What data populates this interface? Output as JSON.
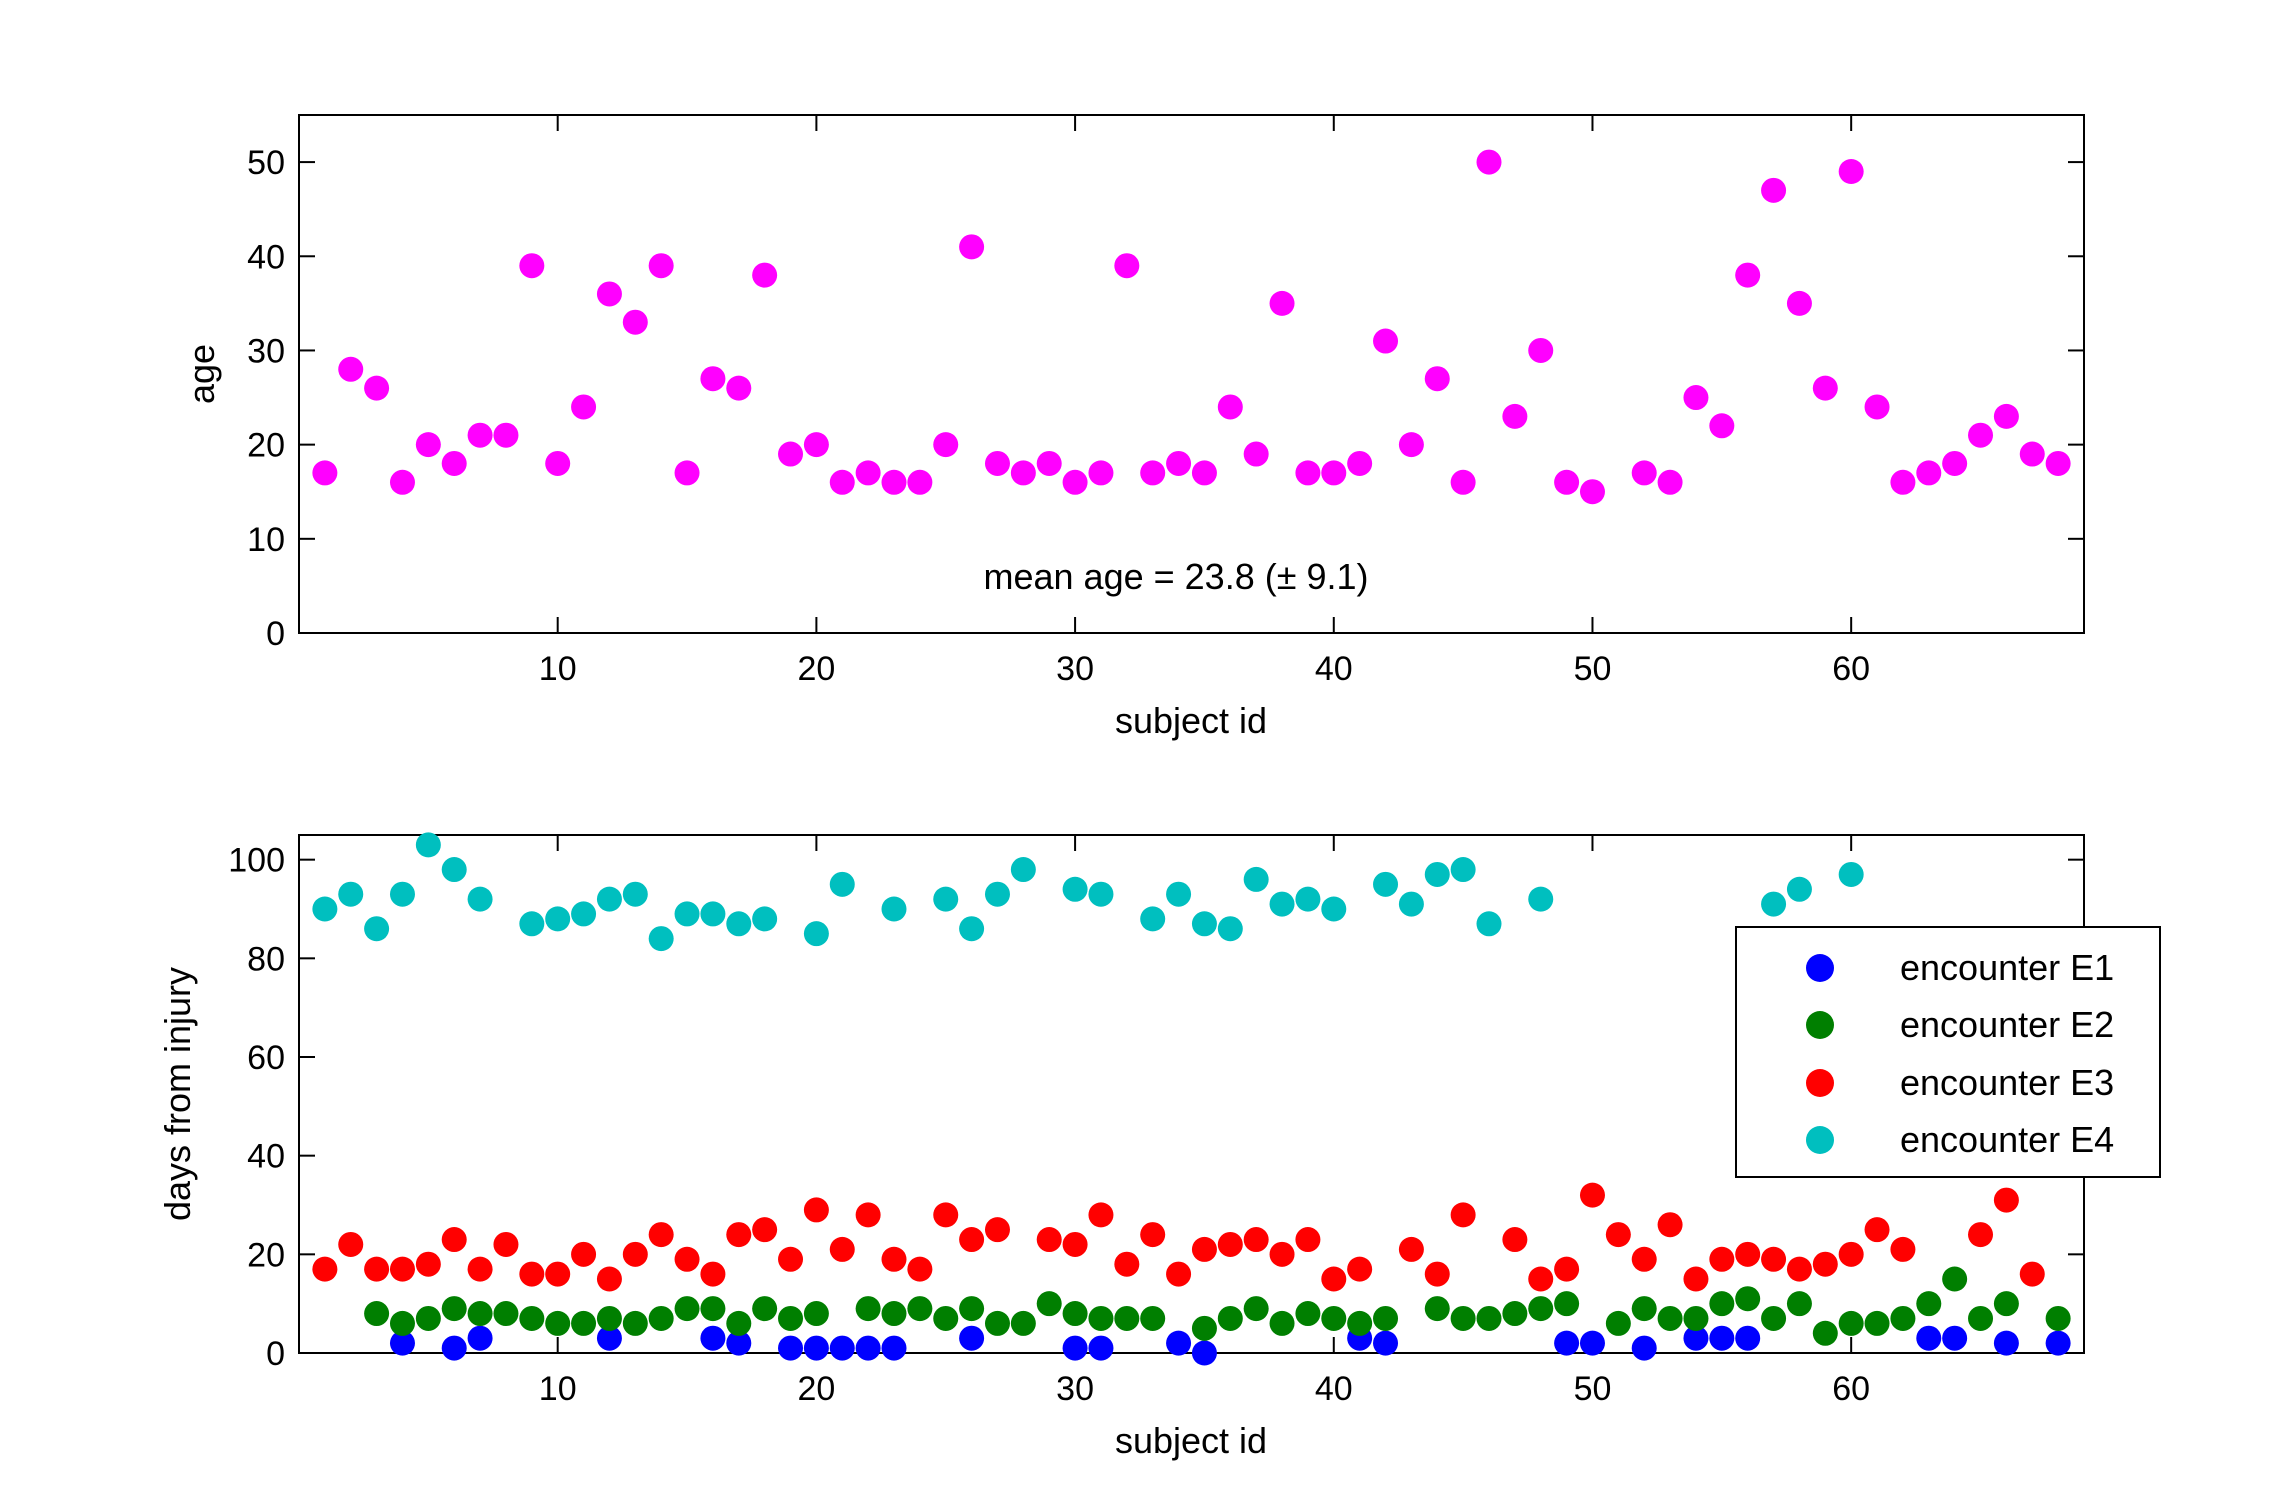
{
  "chart_data": [
    {
      "type": "scatter",
      "xlabel": "subject id",
      "ylabel": "age",
      "xlim": [
        0,
        69
      ],
      "ylim": [
        0,
        55
      ],
      "xticks": [
        10,
        20,
        30,
        40,
        50,
        60
      ],
      "yticks": [
        0,
        10,
        20,
        30,
        40,
        50
      ],
      "annotation": "mean age = 23.8 (± 9.1)",
      "series": [
        {
          "name": "age",
          "color": "#ff00ff",
          "x": [
            1,
            2,
            3,
            4,
            5,
            6,
            7,
            8,
            9,
            10,
            11,
            12,
            13,
            14,
            15,
            16,
            17,
            18,
            19,
            20,
            21,
            22,
            23,
            24,
            25,
            26,
            27,
            28,
            29,
            30,
            31,
            32,
            33,
            34,
            35,
            36,
            37,
            38,
            39,
            40,
            41,
            42,
            43,
            44,
            45,
            46,
            47,
            48,
            49,
            50,
            52,
            53,
            54,
            55,
            56,
            57,
            58,
            59,
            60,
            61,
            62,
            63,
            64,
            65,
            66,
            67,
            68
          ],
          "y": [
            17,
            28,
            26,
            16,
            20,
            18,
            21,
            21,
            39,
            18,
            24,
            36,
            33,
            39,
            17,
            27,
            26,
            38,
            19,
            20,
            16,
            17,
            16,
            16,
            20,
            41,
            18,
            17,
            18,
            16,
            17,
            39,
            17,
            18,
            17,
            24,
            19,
            35,
            17,
            17,
            18,
            31,
            20,
            27,
            16,
            50,
            23,
            30,
            16,
            15,
            17,
            16,
            25,
            22,
            38,
            47,
            35,
            26,
            49,
            24,
            16,
            17,
            18,
            21,
            23,
            19,
            18
          ]
        }
      ]
    },
    {
      "type": "scatter",
      "xlabel": "subject id",
      "ylabel": "days from injury",
      "xlim": [
        0,
        69
      ],
      "ylim": [
        0,
        105
      ],
      "xticks": [
        10,
        20,
        30,
        40,
        50,
        60
      ],
      "yticks": [
        0,
        20,
        40,
        60,
        80,
        100
      ],
      "legend_position": "right",
      "series": [
        {
          "name": "encounter E1",
          "color": "#0000ff",
          "x": [
            4,
            6,
            7,
            12,
            16,
            17,
            19,
            20,
            21,
            22,
            23,
            26,
            30,
            31,
            34,
            35,
            41,
            42,
            49,
            50,
            52,
            54,
            55,
            56,
            63,
            64,
            66,
            68
          ],
          "y": [
            2,
            1,
            3,
            3,
            3,
            2,
            1,
            1,
            1,
            1,
            1,
            3,
            1,
            1,
            2,
            0,
            3,
            2,
            2,
            2,
            1,
            3,
            3,
            3,
            3,
            3,
            2,
            2
          ]
        },
        {
          "name": "encounter E2",
          "color": "#007f00",
          "x": [
            3,
            4,
            5,
            6,
            7,
            8,
            9,
            10,
            11,
            12,
            13,
            14,
            15,
            16,
            17,
            18,
            19,
            20,
            22,
            23,
            24,
            25,
            26,
            27,
            28,
            29,
            30,
            31,
            32,
            33,
            35,
            36,
            37,
            38,
            39,
            40,
            41,
            42,
            44,
            45,
            46,
            47,
            48,
            49,
            51,
            52,
            53,
            54,
            55,
            56,
            57,
            58,
            59,
            60,
            61,
            62,
            63,
            64,
            65,
            66,
            68
          ],
          "y": [
            8,
            6,
            7,
            9,
            8,
            8,
            7,
            6,
            6,
            7,
            6,
            7,
            9,
            9,
            6,
            9,
            7,
            8,
            9,
            8,
            9,
            7,
            9,
            6,
            6,
            10,
            8,
            7,
            7,
            7,
            5,
            7,
            9,
            6,
            8,
            7,
            6,
            7,
            9,
            7,
            7,
            8,
            9,
            10,
            6,
            9,
            7,
            7,
            10,
            11,
            7,
            10,
            4,
            6,
            6,
            7,
            10,
            15,
            7,
            10,
            7
          ]
        },
        {
          "name": "encounter E3",
          "color": "#ff0000",
          "x": [
            1,
            2,
            3,
            4,
            5,
            6,
            7,
            8,
            9,
            10,
            11,
            12,
            13,
            14,
            15,
            16,
            17,
            18,
            19,
            20,
            21,
            22,
            23,
            24,
            25,
            26,
            27,
            29,
            30,
            31,
            32,
            33,
            34,
            35,
            36,
            37,
            38,
            39,
            40,
            41,
            43,
            44,
            45,
            47,
            48,
            49,
            50,
            51,
            52,
            53,
            54,
            55,
            56,
            57,
            58,
            59,
            60,
            61,
            62,
            65,
            66,
            67
          ],
          "y": [
            17,
            22,
            17,
            17,
            18,
            23,
            17,
            22,
            16,
            16,
            20,
            15,
            20,
            24,
            19,
            16,
            24,
            25,
            19,
            29,
            21,
            28,
            19,
            17,
            28,
            23,
            25,
            23,
            22,
            28,
            18,
            24,
            16,
            21,
            22,
            23,
            20,
            23,
            15,
            17,
            21,
            16,
            28,
            23,
            15,
            17,
            32,
            24,
            19,
            26,
            15,
            19,
            20,
            19,
            17,
            18,
            20,
            25,
            21,
            24,
            31,
            16
          ]
        },
        {
          "name": "encounter E4",
          "color": "#00bfbf",
          "x": [
            1,
            2,
            3,
            4,
            5,
            6,
            7,
            9,
            10,
            11,
            12,
            13,
            14,
            15,
            16,
            17,
            18,
            20,
            21,
            23,
            25,
            26,
            27,
            28,
            30,
            31,
            33,
            34,
            35,
            36,
            37,
            38,
            39,
            40,
            42,
            43,
            44,
            45,
            46,
            48,
            57,
            58,
            60
          ],
          "y": [
            90,
            93,
            86,
            93,
            103,
            98,
            92,
            87,
            88,
            89,
            92,
            93,
            84,
            89,
            89,
            87,
            88,
            85,
            95,
            90,
            92,
            86,
            93,
            98,
            94,
            93,
            88,
            93,
            87,
            86,
            96,
            91,
            92,
            90,
            95,
            91,
            97,
            98,
            87,
            92,
            91,
            94,
            97
          ]
        }
      ]
    }
  ]
}
